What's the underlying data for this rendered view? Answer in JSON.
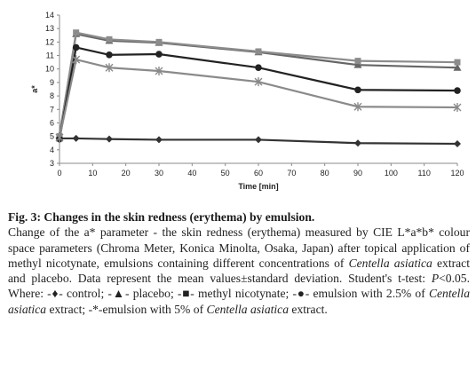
{
  "chart_data": {
    "type": "line",
    "title": "",
    "xlabel": "Time [min]",
    "ylabel": "a*",
    "xlim": [
      0,
      120
    ],
    "ylim": [
      3,
      14
    ],
    "xticks": [
      0,
      10,
      20,
      30,
      40,
      50,
      60,
      70,
      80,
      90,
      100,
      110,
      120
    ],
    "yticks": [
      3,
      4,
      5,
      6,
      7,
      8,
      9,
      10,
      11,
      12,
      13,
      14
    ],
    "grid": false,
    "legend": "none",
    "x": [
      0,
      5,
      15,
      30,
      60,
      90,
      120
    ],
    "series": [
      {
        "values": [
          4.85,
          4.85,
          4.8,
          4.75,
          4.75,
          4.5,
          4.45
        ],
        "color": "#333333",
        "marker": "diamond"
      },
      {
        "values": [
          5.1,
          12.6,
          12.1,
          11.95,
          11.25,
          10.3,
          10.1
        ],
        "color": "#666666",
        "marker": "triangle"
      },
      {
        "values": [
          5.0,
          12.7,
          12.2,
          12.0,
          11.3,
          10.6,
          10.5
        ],
        "color": "#8c8c8c",
        "marker": "square"
      },
      {
        "values": [
          4.8,
          11.6,
          11.05,
          11.1,
          10.1,
          8.45,
          8.4
        ],
        "color": "#222222",
        "marker": "circle"
      },
      {
        "values": [
          4.9,
          10.7,
          10.1,
          9.85,
          9.05,
          7.2,
          7.15
        ],
        "color": "#8a8a8a",
        "marker": "star"
      }
    ]
  },
  "caption": {
    "title": "Fig. 3: Changes in the skin redness (erythema) by emulsion.",
    "body_1": "Change of the a* parameter - the skin redness (erythema) measured by CIE L*a*b* colour space parameters (Chroma Meter, Konica Minolta, Osaka, Japan) after topical application of methyl nicotynate, emulsions containing different concentrations of ",
    "species_1": "Centella asiatica",
    "body_2": " extract and placebo. Data represent the mean values±standard deviation. Student's t-test: ",
    "p_value": "P",
    "body_3": "<0.05. Where: -♦- control; -▲- placebo; -■- methyl nicotynate; -●- emulsion with 2.5% of ",
    "species_2": "Centella asiatica",
    "body_4": " extract; -*-emulsion with 5% of ",
    "species_3": "Centella asiatica",
    "body_5": " extract."
  }
}
